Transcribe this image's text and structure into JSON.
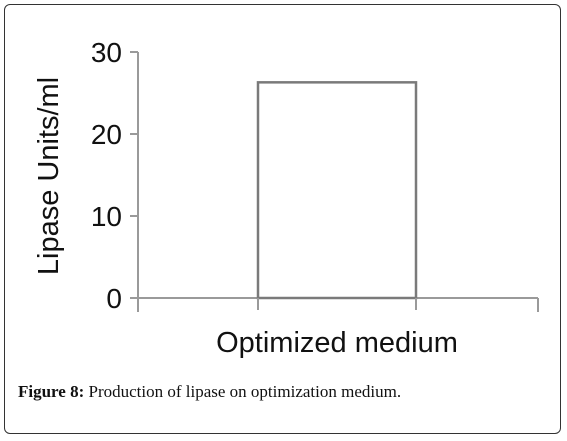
{
  "chart_data": {
    "type": "bar",
    "categories": [
      "Optimized medium"
    ],
    "values": [
      26.3
    ],
    "title": "",
    "xlabel": "",
    "ylabel": "Lipase Units/ml",
    "ylim": [
      0,
      30
    ],
    "yticks": [
      0,
      10,
      20,
      30
    ],
    "grid": false,
    "legend": "none"
  },
  "caption": {
    "label": "Figure 8:",
    "text": " Production of lipase on optimization medium."
  },
  "colors": {
    "bar_fill": "#ffffff",
    "bar_stroke": "#7a7a7a",
    "axis": "#9a9a9a",
    "text": "#111111"
  }
}
